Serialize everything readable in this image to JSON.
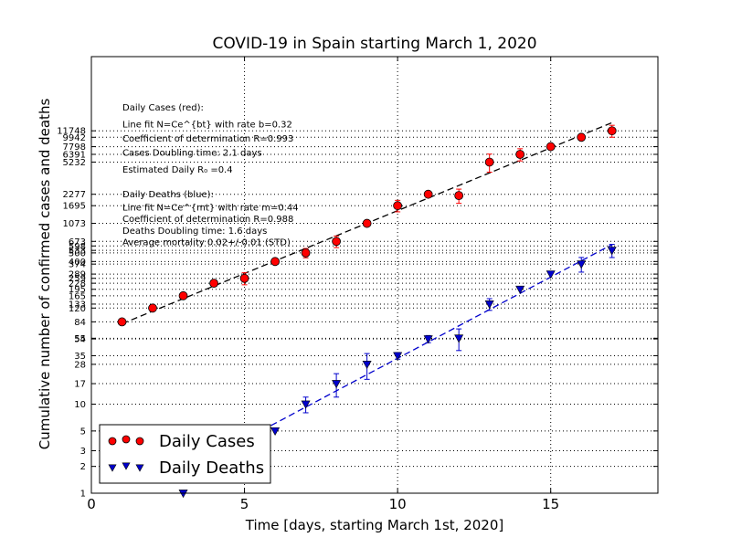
{
  "chart_data": {
    "type": "scatter",
    "title": "COVID-19 in Spain starting March 1, 2020",
    "xlabel": "Time [days, starting March 1st, 2020]",
    "ylabel": "Cumulative number of confirmed cases and deaths",
    "xlim": [
      0,
      18.5
    ],
    "ylim": [
      1,
      80000
    ],
    "yscale": "log",
    "grid": "dotted, x at 5/10/15 and y at each tick",
    "x_ticks": [
      "0",
      "5",
      "10",
      "15"
    ],
    "y_ticks": [
      "1",
      "2",
      "3",
      "5",
      "10",
      "17",
      "28",
      "35",
      "54",
      "55",
      "84",
      "120",
      "133",
      "165",
      "195",
      "228",
      "259",
      "289",
      "374",
      "400",
      "500",
      "533",
      "598",
      "673",
      "1073",
      "1695",
      "2277",
      "5232",
      "6391",
      "7798",
      "9942",
      "11748"
    ],
    "series": [
      {
        "name": "Daily Cases",
        "marker": "circle",
        "color": "#ff0000",
        "x": [
          1,
          2,
          3,
          4,
          5,
          6,
          7,
          8,
          9,
          10,
          11,
          12,
          13,
          14,
          15,
          16,
          17
        ],
        "y": [
          84,
          120,
          165,
          228,
          259,
          400,
          500,
          673,
          1073,
          1695,
          2277,
          2200,
          5232,
          6391,
          7798,
          9942,
          11748
        ],
        "errors": [
          0,
          0,
          0,
          0,
          40,
          0,
          60,
          100,
          0,
          250,
          0,
          400,
          1200,
          1000,
          0,
          0,
          1800
        ]
      },
      {
        "name": "Daily Deaths",
        "marker": "triangle-down",
        "color": "#0000cc",
        "x": [
          3,
          5,
          6,
          7,
          8,
          9,
          10,
          11,
          12,
          13,
          14,
          15,
          16,
          17
        ],
        "y": [
          1,
          5,
          5,
          10,
          17,
          28,
          35,
          54,
          55,
          133,
          195,
          289,
          374,
          533
        ],
        "errors": [
          0,
          0,
          0,
          2,
          5,
          9,
          3,
          5,
          15,
          20,
          0,
          0,
          70,
          90
        ]
      }
    ],
    "fit_lines": [
      {
        "series": "Daily Cases",
        "x": [
          1,
          17
        ],
        "y": [
          80,
          14500
        ],
        "color": "#000000",
        "style": "dashed"
      },
      {
        "series": "Daily Deaths",
        "x": [
          5,
          17
        ],
        "y": [
          4,
          620
        ],
        "color": "#0000cc",
        "style": "dashed"
      }
    ],
    "legend": {
      "placement": "lower-left",
      "entries": [
        "Daily Cases",
        "Daily Deaths"
      ]
    },
    "annotations": {
      "cases": [
        "Daily Cases (red):",
        "Line fit N=Ce^{bt} with rate b=0.32",
        "Coefficient of determination R=0.993",
        "Cases Doubling time: 2.1 days",
        "Estimated Daily R₀ =0.4"
      ],
      "deaths": [
        "Daily Deaths (blue):",
        "Line fit N=Ce^{mt} with rate m=0.44",
        "Coefficient of determination R=0.988",
        "Deaths Doubling time: 1.6 days",
        "Average mortality 0.02+/-0.01 (STD)"
      ]
    }
  }
}
